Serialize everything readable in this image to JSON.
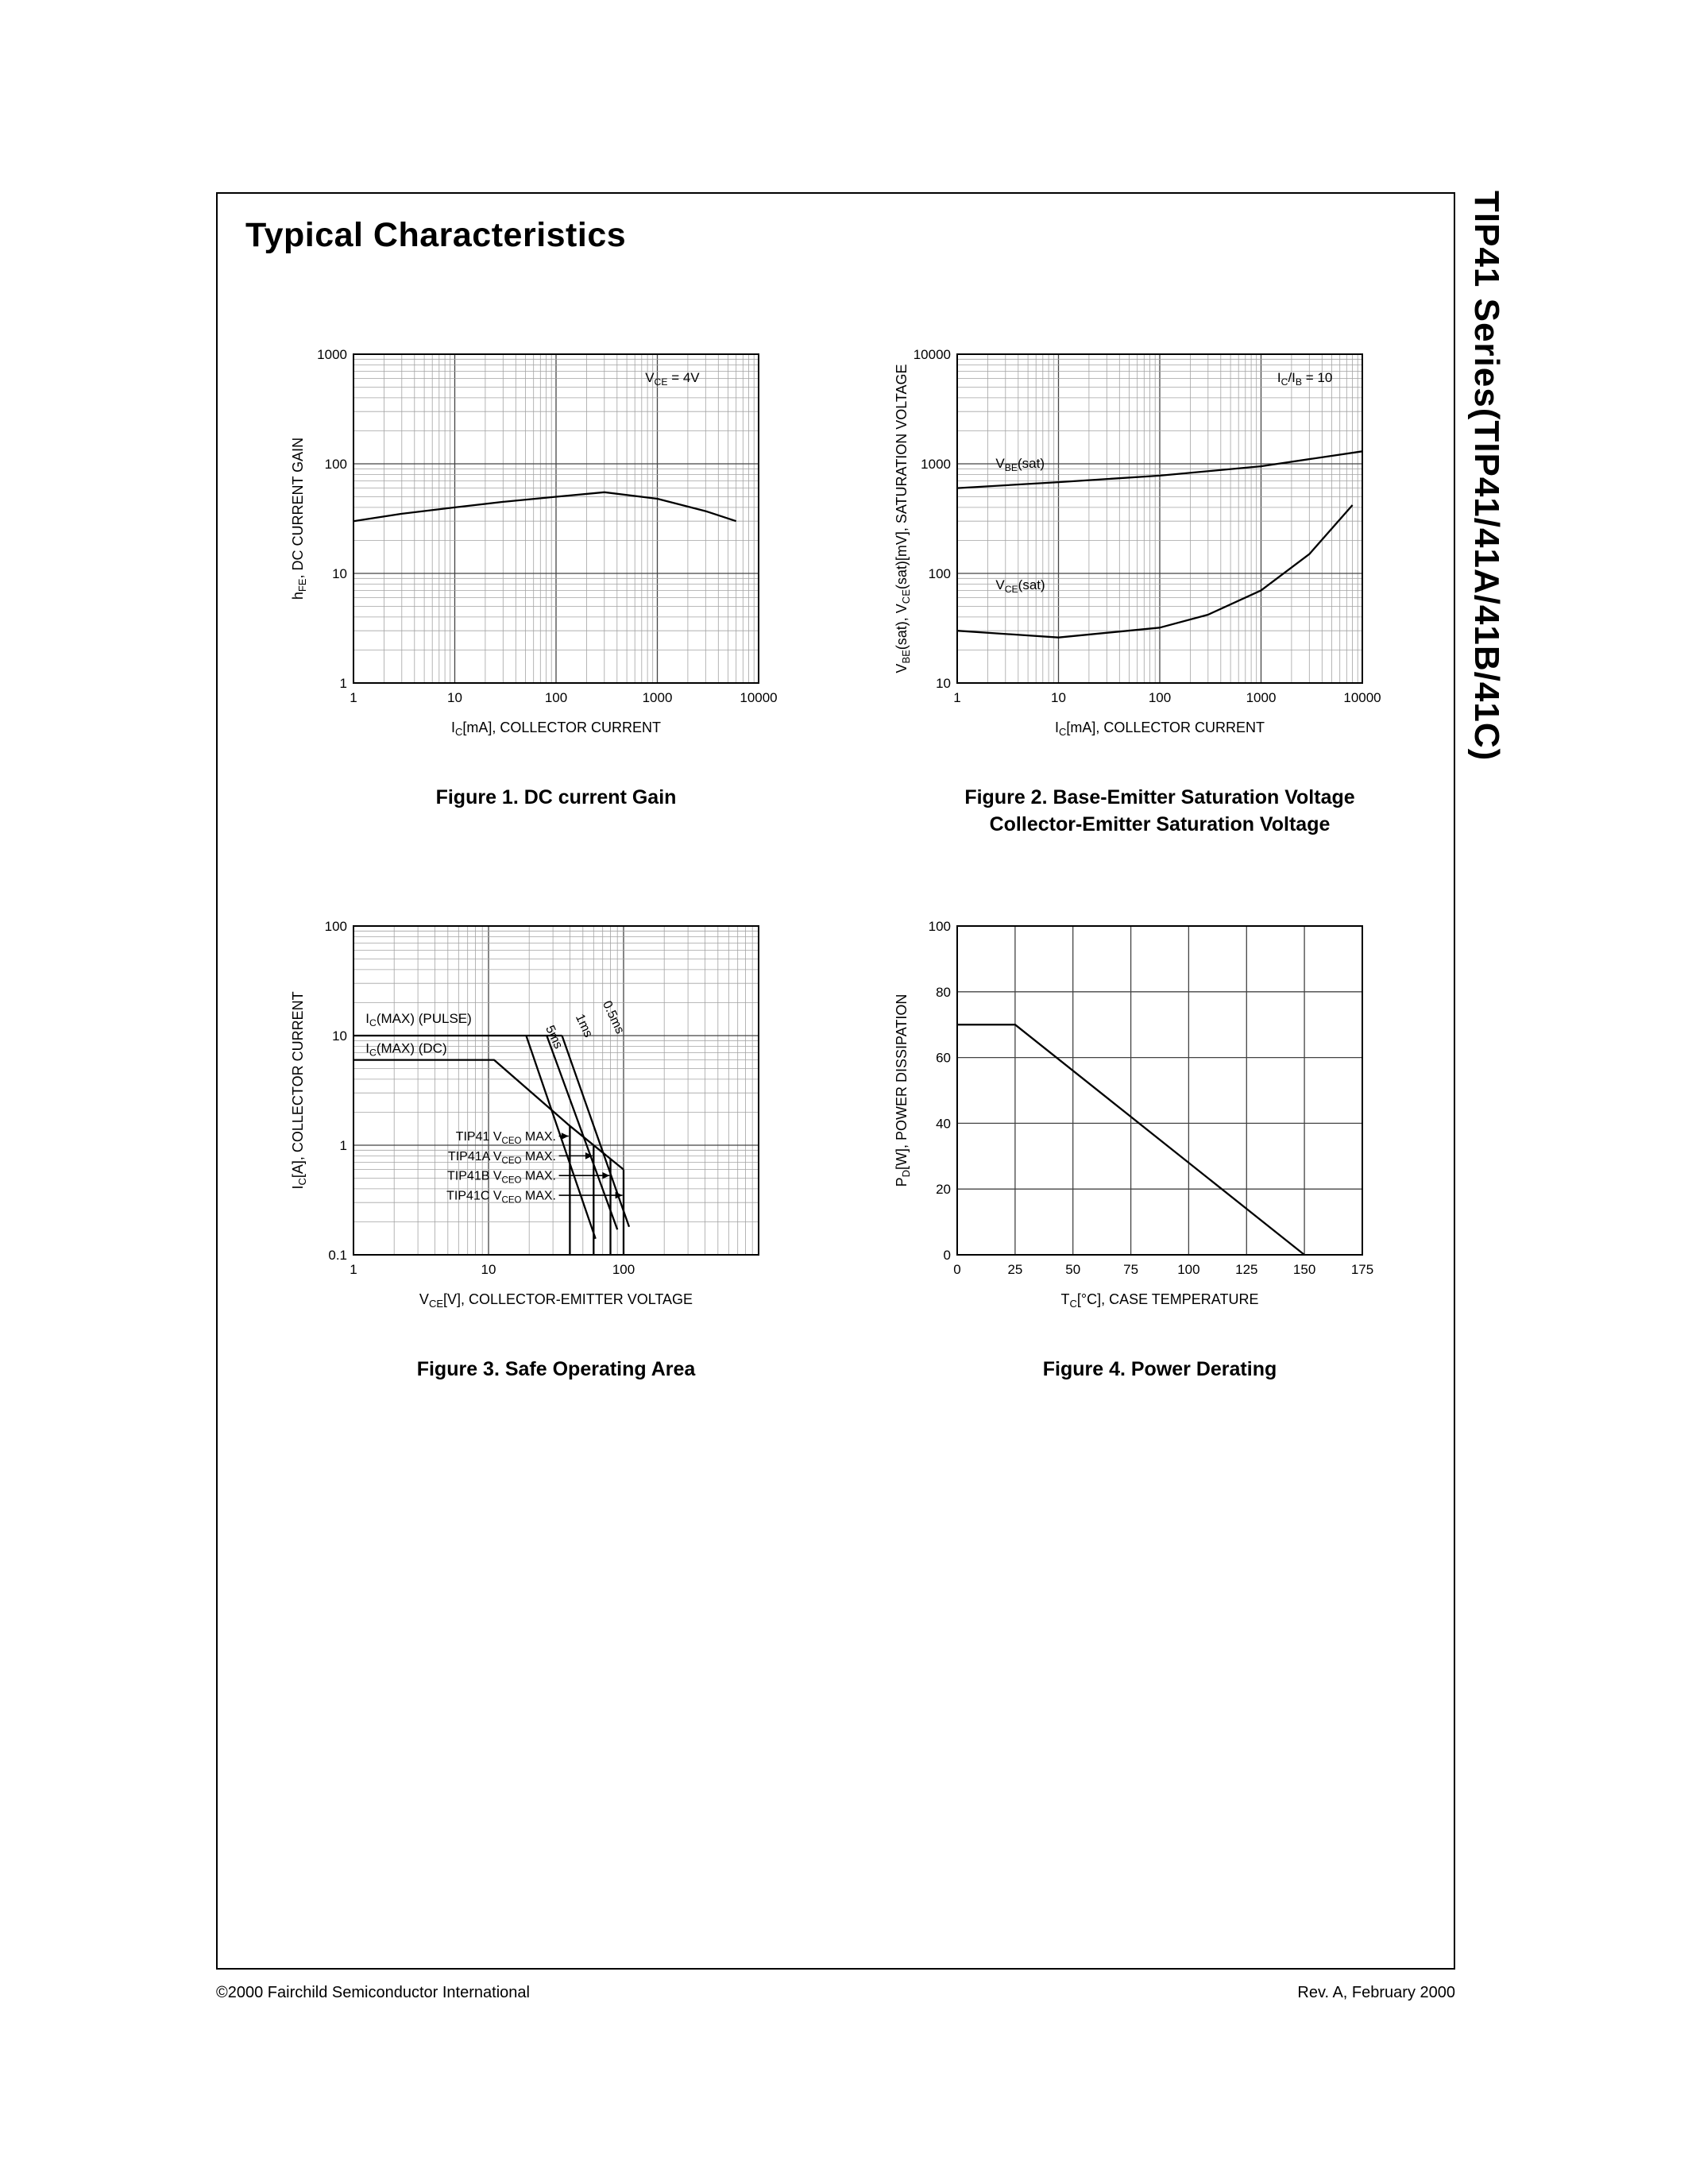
{
  "page": {
    "title": "Typical Characteristics",
    "side_title": "TIP41 Series(TIP41/41A/41B/41C)",
    "footer_left": "©2000 Fairchild Semiconductor International",
    "footer_right": "Rev. A, February 2000"
  },
  "chart_data": [
    {
      "name": "dc-current-gain",
      "type": "line",
      "caption": "Figure 1. DC current Gain",
      "xlabel": "I~C~[mA], COLLECTOR CURRENT",
      "ylabel": "h~FE~, DC CURRENT GAIN",
      "grid": true,
      "x": {
        "type": "log",
        "min": 1,
        "max": 10000,
        "ticks": [
          1,
          10,
          100,
          1000,
          10000
        ],
        "tick_labels": [
          "1",
          "10",
          "100",
          "1000",
          "10000"
        ]
      },
      "y": {
        "type": "log",
        "min": 1,
        "max": 1000,
        "ticks": [
          1,
          10,
          100,
          1000
        ],
        "tick_labels": [
          "1",
          "10",
          "100",
          "1000"
        ]
      },
      "series": [
        {
          "name": "hFE at VCE=4V",
          "points": [
            [
              1,
              30
            ],
            [
              3,
              35
            ],
            [
              10,
              40
            ],
            [
              30,
              45
            ],
            [
              100,
              50
            ],
            [
              300,
              55
            ],
            [
              1000,
              48
            ],
            [
              3000,
              37
            ],
            [
              6000,
              30
            ]
          ]
        }
      ],
      "annotations": [
        {
          "text": "V~CE~ = 4V",
          "fx": 0.72,
          "fy": 0.085,
          "anchor": "start"
        }
      ]
    },
    {
      "name": "saturation-voltage",
      "type": "line",
      "caption": "Figure 2. Base-Emitter Saturation Voltage\nCollector-Emitter Saturation Voltage",
      "xlabel": "I~C~[mA], COLLECTOR CURRENT",
      "ylabel": "V~BE~(sat), V~CE~(sat)[mV], SATURATION VOLTAGE",
      "grid": true,
      "x": {
        "type": "log",
        "min": 1,
        "max": 10000,
        "ticks": [
          1,
          10,
          100,
          1000,
          10000
        ],
        "tick_labels": [
          "1",
          "10",
          "100",
          "1000",
          "10000"
        ]
      },
      "y": {
        "type": "log",
        "min": 10,
        "max": 10000,
        "ticks": [
          10,
          100,
          1000,
          10000
        ],
        "tick_labels": [
          "10",
          "100",
          "1000",
          "10000"
        ]
      },
      "series": [
        {
          "name": "VBE(sat)",
          "points": [
            [
              1,
              600
            ],
            [
              10,
              680
            ],
            [
              100,
              780
            ],
            [
              1000,
              950
            ],
            [
              10000,
              1300
            ]
          ]
        },
        {
          "name": "VCE(sat)",
          "points": [
            [
              1,
              30
            ],
            [
              10,
              26
            ],
            [
              100,
              32
            ],
            [
              300,
              42
            ],
            [
              1000,
              70
            ],
            [
              3000,
              150
            ],
            [
              8000,
              420
            ]
          ]
        }
      ],
      "annotations": [
        {
          "text": "I~C~/I~B~ = 10",
          "fx": 0.79,
          "fy": 0.085,
          "anchor": "start"
        },
        {
          "text": "V~BE~(sat)",
          "fx": 0.095,
          "fy": 0.345,
          "anchor": "start"
        },
        {
          "text": "V~CE~(sat)",
          "fx": 0.095,
          "fy": 0.715,
          "anchor": "start"
        }
      ]
    },
    {
      "name": "safe-operating-area",
      "type": "line",
      "caption": "Figure 3. Safe Operating Area",
      "xlabel": "V~CE~[V], COLLECTOR-EMITTER VOLTAGE",
      "ylabel": "I~C~[A], COLLECTOR CURRENT",
      "grid": true,
      "x": {
        "type": "log",
        "min": 1,
        "max": 1000,
        "ticks": [
          1,
          10,
          100
        ],
        "tick_labels": [
          "1",
          "10",
          "100"
        ]
      },
      "y": {
        "type": "log",
        "min": 0.1,
        "max": 100,
        "ticks": [
          0.1,
          1,
          10,
          100
        ],
        "tick_labels": [
          "0.1",
          "1",
          "10",
          "100"
        ]
      },
      "series": [
        {
          "name": "IC max pulse",
          "points": [
            [
              1,
              10
            ],
            [
              35,
              10
            ]
          ]
        },
        {
          "name": "0.5ms limit",
          "points": [
            [
              35,
              10
            ],
            [
              110,
              0.18
            ]
          ]
        },
        {
          "name": "1ms limit",
          "points": [
            [
              27,
              10
            ],
            [
              90,
              0.17
            ]
          ]
        },
        {
          "name": "5ms limit",
          "points": [
            [
              19,
              10
            ],
            [
              62,
              0.14
            ]
          ]
        },
        {
          "name": "DC limit",
          "points": [
            [
              1,
              6
            ],
            [
              11,
              6
            ],
            [
              40,
              1.5
            ],
            [
              100,
              0.6
            ]
          ]
        },
        {
          "name": "TIP41 VCEO 40V",
          "points": [
            [
              40,
              1.5
            ],
            [
              40,
              0.1
            ]
          ]
        },
        {
          "name": "TIP41A VCEO 60V",
          "points": [
            [
              60,
              1.0
            ],
            [
              60,
              0.1
            ]
          ]
        },
        {
          "name": "TIP41B VCEO 80V",
          "points": [
            [
              80,
              0.75
            ],
            [
              80,
              0.1
            ]
          ]
        },
        {
          "name": "TIP41C VCEO 100V",
          "points": [
            [
              100,
              0.6
            ],
            [
              100,
              0.1
            ]
          ]
        }
      ],
      "annotations": [
        {
          "text": "I~C~(MAX) (PULSE)",
          "fx": 0.03,
          "fy": 0.295,
          "anchor": "start"
        },
        {
          "text": "I~C~(MAX) (DC)",
          "fx": 0.03,
          "fy": 0.385,
          "anchor": "start"
        },
        {
          "text": "0.5ms",
          "fx": 0.615,
          "fy": 0.235,
          "anchor": "start",
          "rotate": 65,
          "size": 16
        },
        {
          "text": "1ms",
          "fx": 0.548,
          "fy": 0.275,
          "anchor": "start",
          "rotate": 65,
          "size": 16
        },
        {
          "text": "5ms",
          "fx": 0.474,
          "fy": 0.31,
          "anchor": "start",
          "rotate": 65,
          "size": 16
        },
        {
          "text": "TIP41 V~CEO~ MAX.",
          "fx": 0.5,
          "fy": 0.652,
          "anchor": "end",
          "size": 16
        },
        {
          "text": "TIP41A V~CEO~ MAX.",
          "fx": 0.5,
          "fy": 0.712,
          "anchor": "end",
          "size": 16
        },
        {
          "text": "TIP41B V~CEO~ MAX.",
          "fx": 0.5,
          "fy": 0.772,
          "anchor": "end",
          "size": 16
        },
        {
          "text": "TIP41C V~CEO~ MAX.",
          "fx": 0.5,
          "fy": 0.832,
          "anchor": "end",
          "size": 16
        }
      ],
      "arrows": [
        {
          "fx1": 0.507,
          "fy1": 0.639,
          "fx2": 0.531,
          "fy2": 0.639
        },
        {
          "fx1": 0.507,
          "fy1": 0.699,
          "fx2": 0.59,
          "fy2": 0.699
        },
        {
          "fx1": 0.507,
          "fy1": 0.759,
          "fx2": 0.632,
          "fy2": 0.759
        },
        {
          "fx1": 0.507,
          "fy1": 0.819,
          "fx2": 0.664,
          "fy2": 0.819
        }
      ]
    },
    {
      "name": "power-derating",
      "type": "line",
      "caption": "Figure 4. Power Derating",
      "xlabel": "T~C~[°C], CASE TEMPERATURE",
      "ylabel": "P~D~[W], POWER DISSIPATION",
      "grid": true,
      "x": {
        "type": "linear",
        "min": 0,
        "max": 175,
        "ticks": [
          0,
          25,
          50,
          75,
          100,
          125,
          150,
          175
        ],
        "tick_labels": [
          "0",
          "25",
          "50",
          "75",
          "100",
          "125",
          "150",
          "175"
        ]
      },
      "y": {
        "type": "linear",
        "min": 0,
        "max": 100,
        "ticks": [
          0,
          20,
          40,
          60,
          80,
          100
        ],
        "tick_labels": [
          "0",
          "20",
          "40",
          "60",
          "80",
          "100"
        ]
      },
      "series": [
        {
          "name": "PD max vs TC",
          "points": [
            [
              0,
              70
            ],
            [
              25,
              70
            ],
            [
              150,
              0
            ]
          ]
        }
      ]
    }
  ]
}
